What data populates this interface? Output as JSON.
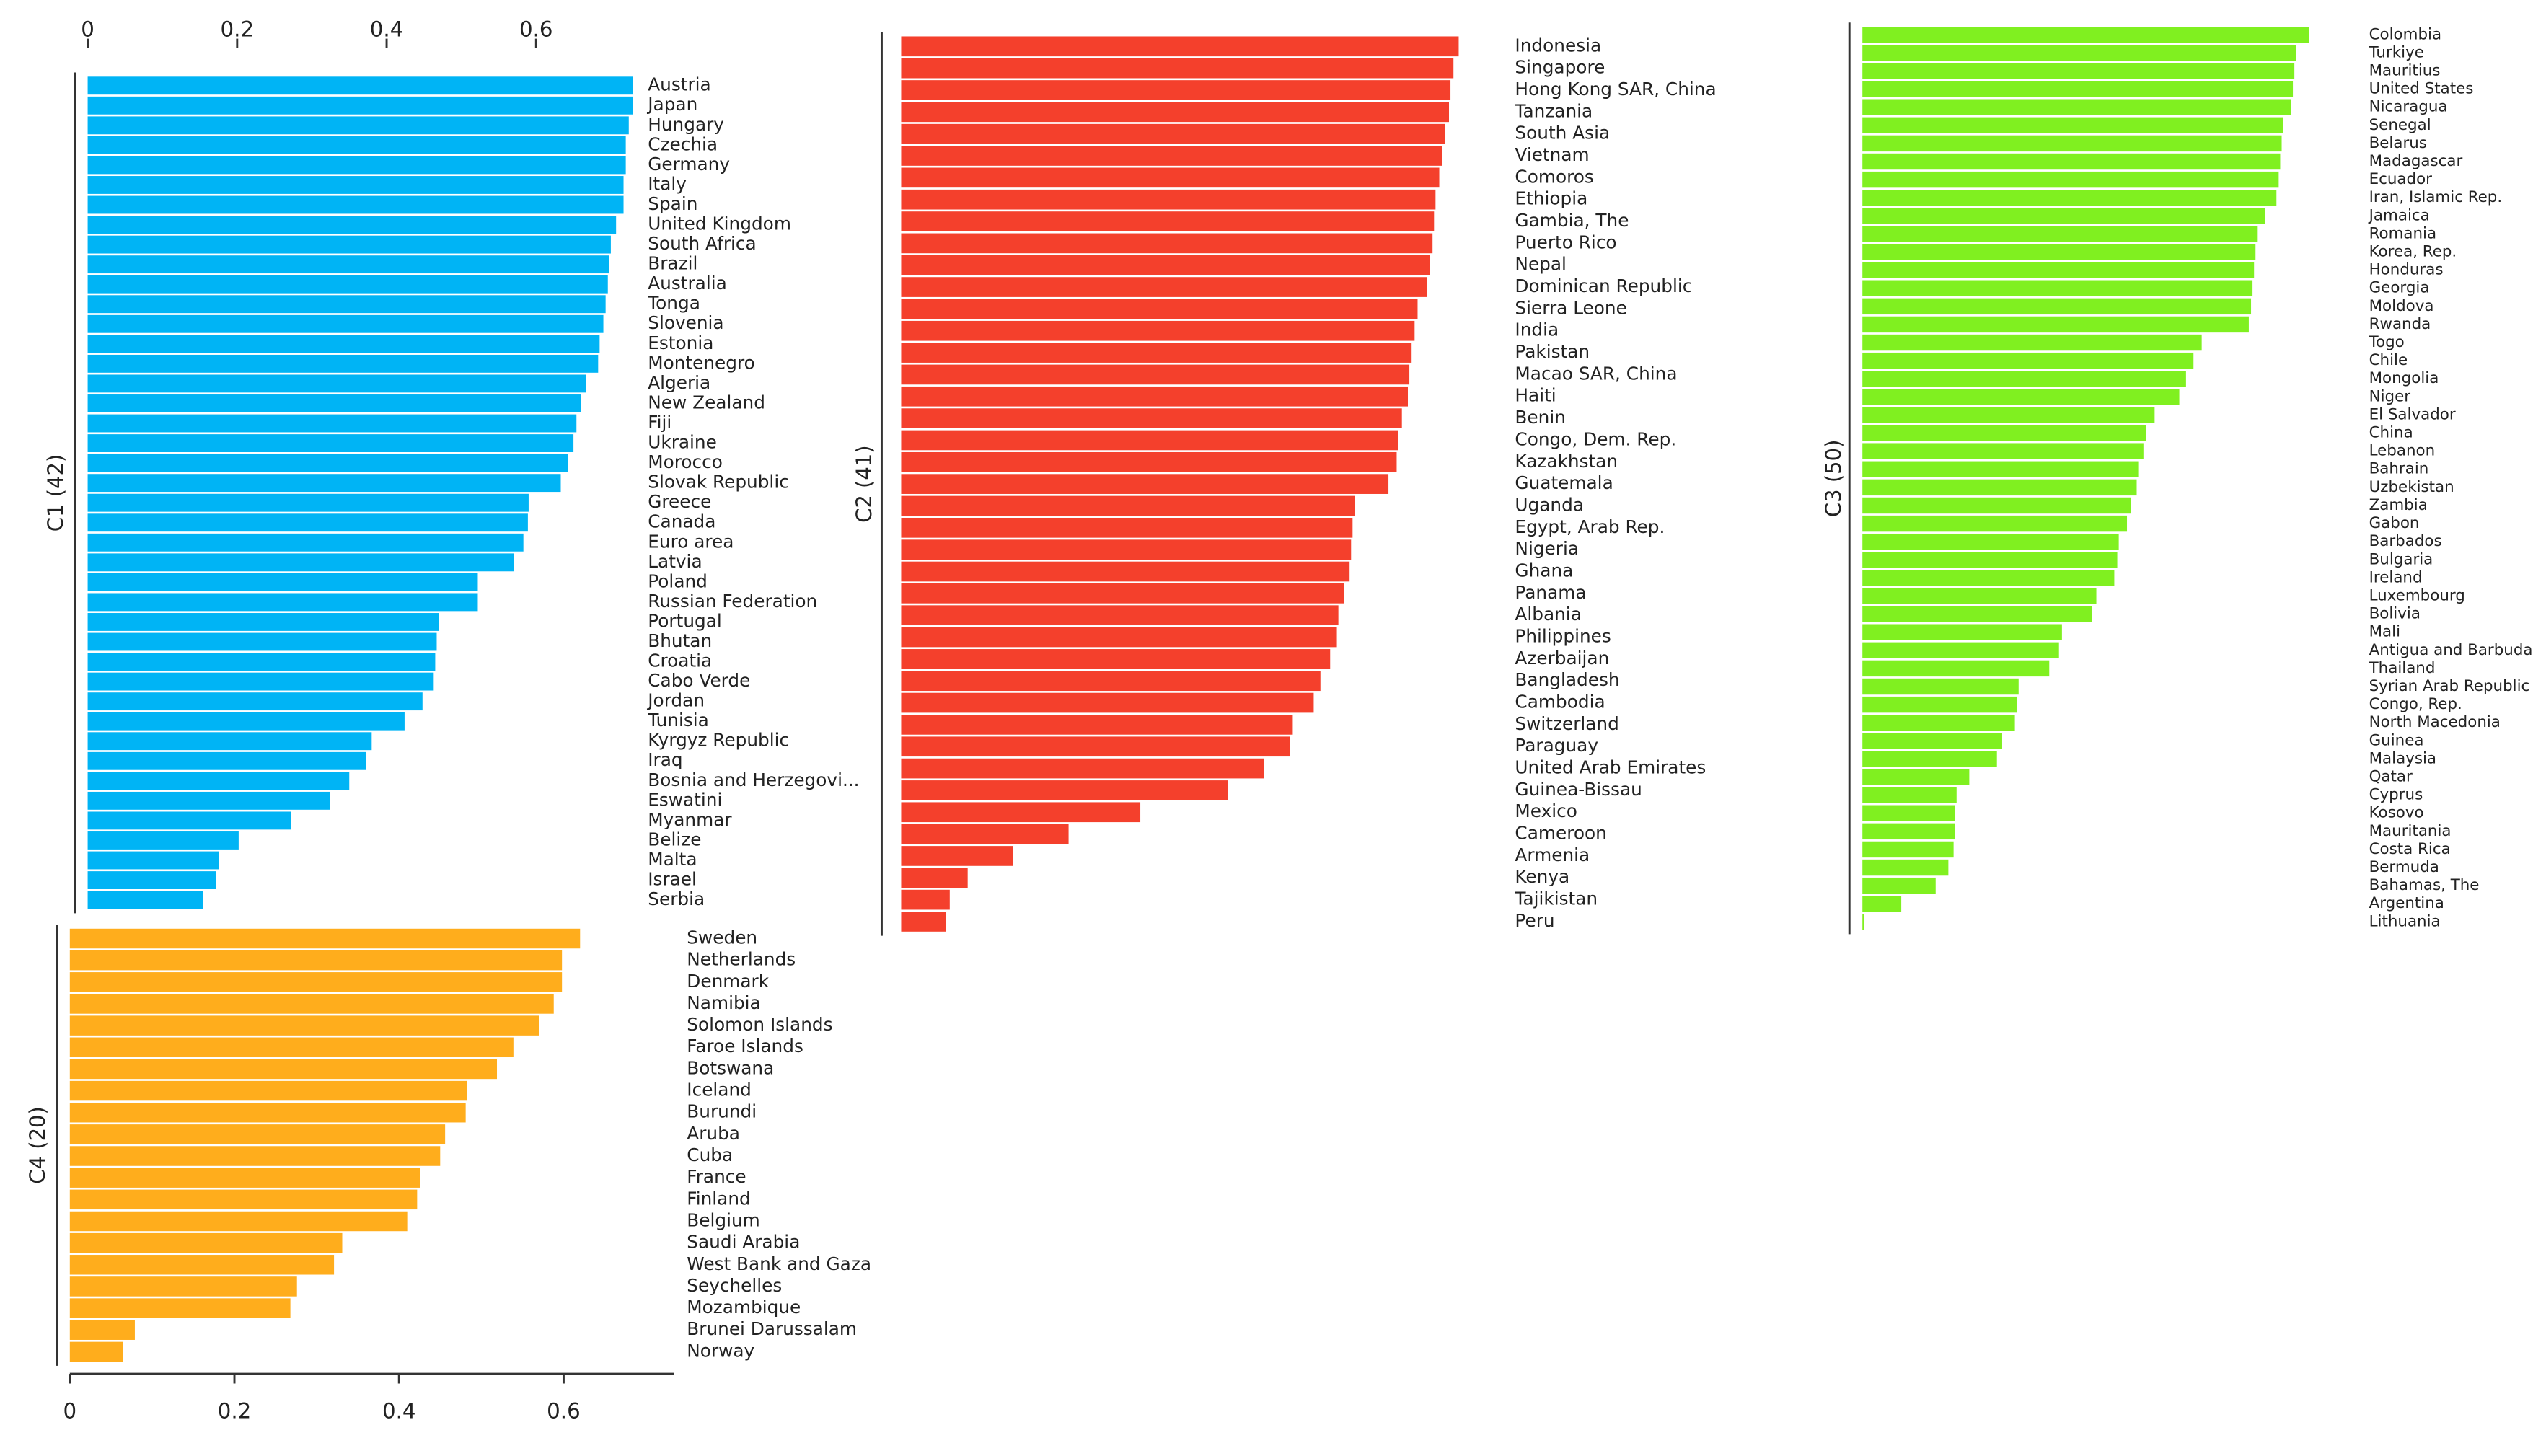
{
  "chart_data": [
    {
      "type": "bar",
      "horizontal": true,
      "ylabel": "C1 (42)",
      "color": "#00b4f5",
      "xlim": [
        0,
        0.73
      ],
      "xticks": [
        0,
        0.2,
        0.4,
        0.6
      ],
      "categories": [
        "Austria",
        "Japan",
        "Hungary",
        "Czechia",
        "Germany",
        "Italy",
        "Spain",
        "United Kingdom",
        "South Africa",
        "Brazil",
        "Australia",
        "Tonga",
        "Slovenia",
        "Estonia",
        "Montenegro",
        "Algeria",
        "New Zealand",
        "Fiji",
        "Ukraine",
        "Morocco",
        "Slovak Republic",
        "Greece",
        "Canada",
        "Euro area",
        "Latvia",
        "Poland",
        "Russian Federation",
        "Portugal",
        "Bhutan",
        "Croatia",
        "Cabo Verde",
        "Jordan",
        "Tunisia",
        "Kyrgyz Republic",
        "Iraq",
        "Bosnia and Herzegovi...",
        "Eswatini",
        "Myanmar",
        "Belize",
        "Malta",
        "Israel",
        "Serbia"
      ],
      "values": [
        0.73,
        0.73,
        0.724,
        0.72,
        0.72,
        0.717,
        0.717,
        0.707,
        0.7,
        0.698,
        0.696,
        0.693,
        0.69,
        0.685,
        0.683,
        0.667,
        0.66,
        0.654,
        0.65,
        0.643,
        0.633,
        0.59,
        0.589,
        0.583,
        0.57,
        0.522,
        0.522,
        0.47,
        0.467,
        0.465,
        0.463,
        0.448,
        0.424,
        0.38,
        0.372,
        0.35,
        0.324,
        0.272,
        0.202,
        0.176,
        0.172,
        0.154
      ]
    },
    {
      "type": "bar",
      "horizontal": true,
      "ylabel": "C2 (41)",
      "color": "#f4402c",
      "xlim": [
        0,
        0.73
      ],
      "categories": [
        "Indonesia",
        "Singapore",
        "Hong Kong SAR, China",
        "Tanzania",
        "South Asia",
        "Vietnam",
        "Comoros",
        "Ethiopia",
        "Gambia, The",
        "Puerto Rico",
        "Nepal",
        "Dominican Republic",
        "Sierra Leone",
        "India",
        "Pakistan",
        "Macao SAR, China",
        "Haiti",
        "Benin",
        "Congo, Dem. Rep.",
        "Kazakhstan",
        "Guatemala",
        "Uganda",
        "Egypt, Arab Rep.",
        "Nigeria",
        "Ghana",
        "Panama",
        "Albania",
        "Philippines",
        "Azerbaijan",
        "Bangladesh",
        "Cambodia",
        "Switzerland",
        "Paraguay",
        "United Arab Emirates",
        "Guinea-Bissau",
        "Mexico",
        "Cameroon",
        "Armenia",
        "Kenya",
        "Tajikistan",
        "Peru"
      ],
      "values": [
        0.746,
        0.739,
        0.735,
        0.733,
        0.728,
        0.724,
        0.72,
        0.715,
        0.713,
        0.711,
        0.707,
        0.704,
        0.691,
        0.687,
        0.683,
        0.68,
        0.678,
        0.67,
        0.665,
        0.663,
        0.652,
        0.607,
        0.604,
        0.602,
        0.6,
        0.593,
        0.585,
        0.583,
        0.574,
        0.561,
        0.552,
        0.524,
        0.52,
        0.485,
        0.437,
        0.32,
        0.224,
        0.15,
        0.089,
        0.065,
        0.06
      ]
    },
    {
      "type": "bar",
      "horizontal": true,
      "ylabel": "C3 (50)",
      "color": "#80f020",
      "xlim": [
        0,
        0.73
      ],
      "categories": [
        "Colombia",
        "Turkiye",
        "Mauritius",
        "United States",
        "Nicaragua",
        "Senegal",
        "Belarus",
        "Madagascar",
        "Ecuador",
        "Iran, Islamic Rep.",
        "Jamaica",
        "Romania",
        "Korea, Rep.",
        "Honduras",
        "Georgia",
        "Moldova",
        "Rwanda",
        "Togo",
        "Chile",
        "Mongolia",
        "Niger",
        "El Salvador",
        "China",
        "Lebanon",
        "Bahrain",
        "Uzbekistan",
        "Zambia",
        "Gabon",
        "Barbados",
        "Bulgaria",
        "Ireland",
        "Luxembourg",
        "Bolivia",
        "Mali",
        "Antigua and Barbuda",
        "Thailand",
        "Syrian Arab Republic",
        "Congo, Rep.",
        "North Macedonia",
        "Guinea",
        "Malaysia",
        "Qatar",
        "Cyprus",
        "Kosovo",
        "Mauritania",
        "Costa Rica",
        "Bermuda",
        "Bahamas, The",
        "Argentina",
        "Lithuania"
      ],
      "values": [
        0.598,
        0.58,
        0.578,
        0.576,
        0.574,
        0.563,
        0.561,
        0.559,
        0.557,
        0.554,
        0.539,
        0.528,
        0.526,
        0.524,
        0.522,
        0.52,
        0.517,
        0.454,
        0.443,
        0.433,
        0.424,
        0.391,
        0.38,
        0.376,
        0.37,
        0.367,
        0.359,
        0.354,
        0.343,
        0.341,
        0.337,
        0.313,
        0.307,
        0.267,
        0.263,
        0.25,
        0.209,
        0.207,
        0.204,
        0.187,
        0.18,
        0.143,
        0.126,
        0.124,
        0.124,
        0.122,
        0.115,
        0.098,
        0.052,
        0.002
      ]
    },
    {
      "type": "bar",
      "horizontal": true,
      "ylabel": "C4 (20)",
      "color": "#ffad1c",
      "xlim": [
        0,
        0.73
      ],
      "xticks": [
        0,
        0.2,
        0.4,
        0.6
      ],
      "categories": [
        "Sweden",
        "Netherlands",
        "Denmark",
        "Namibia",
        "Solomon Islands",
        "Faroe Islands",
        "Botswana",
        "Iceland",
        "Burundi",
        "Aruba",
        "Cuba",
        "France",
        "Finland",
        "Belgium",
        "Saudi Arabia",
        "West Bank and Gaza",
        "Seychelles",
        "Mozambique",
        "Brunei Darussalam",
        "Norway"
      ],
      "values": [
        0.62,
        0.598,
        0.598,
        0.588,
        0.57,
        0.539,
        0.519,
        0.483,
        0.481,
        0.456,
        0.45,
        0.426,
        0.422,
        0.41,
        0.331,
        0.321,
        0.276,
        0.268,
        0.079,
        0.065
      ]
    }
  ]
}
